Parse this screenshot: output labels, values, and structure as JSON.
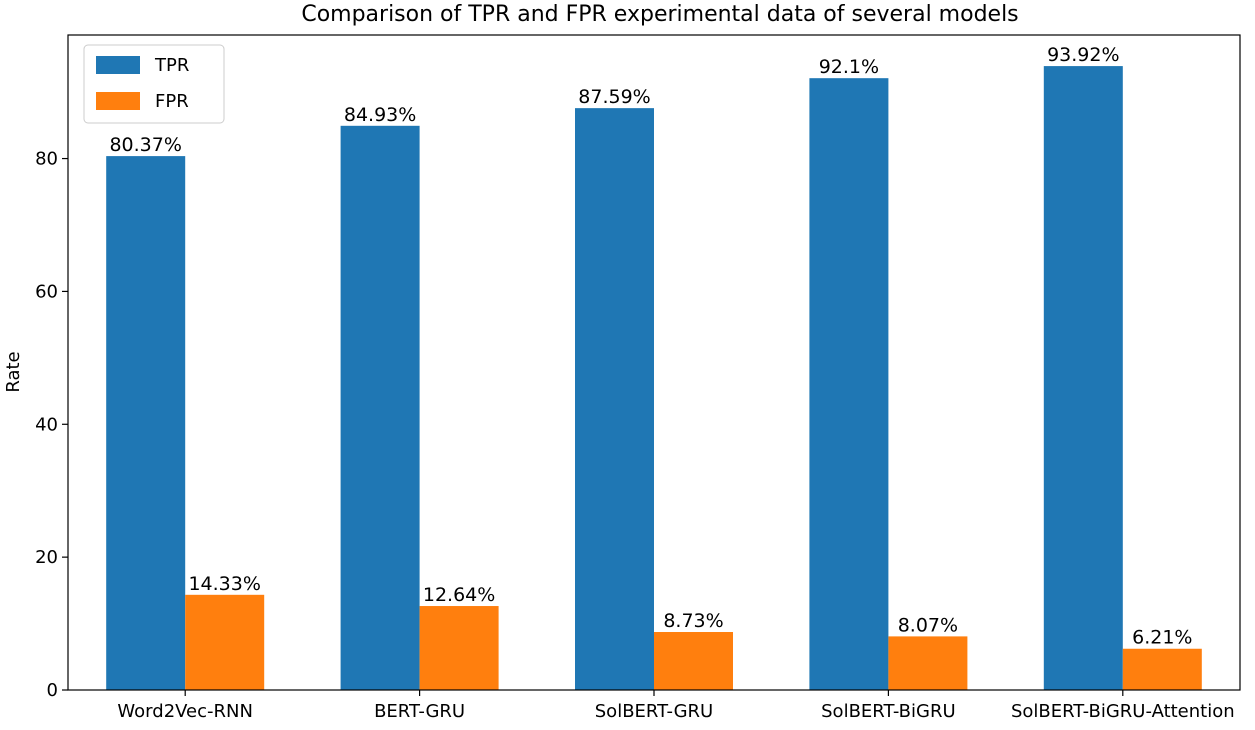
{
  "chart_data": {
    "type": "bar",
    "title": "Comparison of TPR and FPR experimental data of several models",
    "xlabel": "",
    "ylabel": "Rate",
    "categories": [
      "Word2Vec-RNN",
      "BERT-GRU",
      "SolBERT-GRU",
      "SolBERT-BiGRU",
      "SolBERT-BiGRU-Attention"
    ],
    "series": [
      {
        "name": "TPR",
        "color": "#1f77b4",
        "values": [
          80.37,
          84.93,
          87.59,
          92.1,
          93.92
        ],
        "labels": [
          "80.37%",
          "84.93%",
          "87.59%",
          "92.1%",
          "93.92%"
        ]
      },
      {
        "name": "FPR",
        "color": "#ff7f0e",
        "values": [
          14.33,
          12.64,
          8.73,
          8.07,
          6.21
        ],
        "labels": [
          "14.33%",
          "12.64%",
          "8.73%",
          "8.07%",
          "6.21%"
        ]
      }
    ],
    "ylim": [
      0,
      98.6
    ],
    "yticks": [
      0,
      20,
      40,
      60,
      80
    ],
    "grid": false,
    "legend_position": "top-left"
  }
}
